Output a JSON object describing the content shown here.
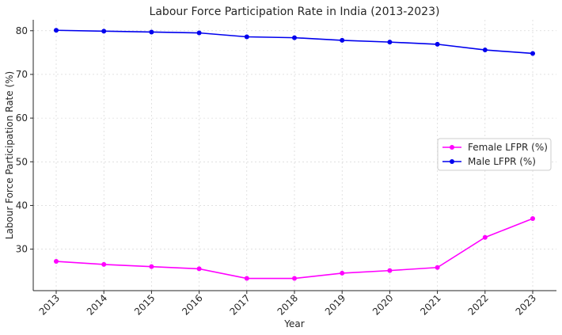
{
  "chart_data": {
    "type": "line",
    "title": "Labour Force Participation Rate in India (2013-2023)",
    "xlabel": "Year",
    "ylabel": "Labour Force Participation Rate (%)",
    "categories": [
      "2013",
      "2014",
      "2015",
      "2016",
      "2017",
      "2018",
      "2019",
      "2020",
      "2021",
      "2022",
      "2023"
    ],
    "ylim": [
      20.5,
      82.5
    ],
    "yticks": [
      30,
      40,
      50,
      60,
      70,
      80
    ],
    "grid": true,
    "legend_position": "center-right",
    "series": [
      {
        "name": "Female LFPR (%)",
        "color": "#ff00ff",
        "values": [
          27.2,
          26.5,
          26.0,
          25.5,
          23.3,
          23.3,
          24.5,
          25.1,
          25.8,
          32.7,
          37.0
        ]
      },
      {
        "name": "Male LFPR (%)",
        "color": "#0000ee",
        "values": [
          80.1,
          79.9,
          79.7,
          79.5,
          78.6,
          78.4,
          77.8,
          77.4,
          76.9,
          75.6,
          74.8
        ]
      }
    ]
  }
}
